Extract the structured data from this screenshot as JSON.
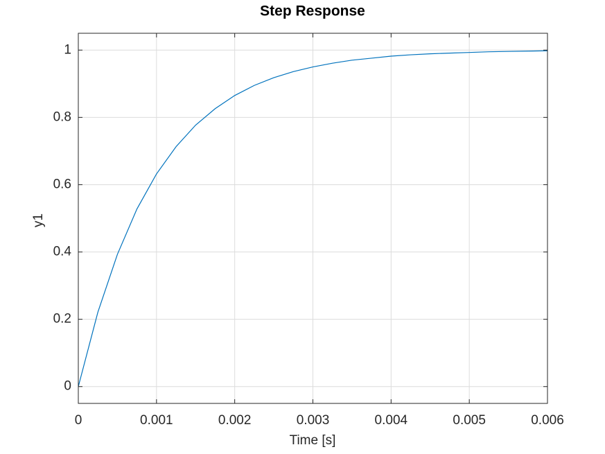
{
  "chart_data": {
    "type": "line",
    "title": "Step Response",
    "x_label": "Time [s]",
    "y_label": "y1",
    "x": [
      0,
      0.00025,
      0.0005,
      0.00075,
      0.001,
      0.00125,
      0.0015,
      0.00175,
      0.002,
      0.00225,
      0.0025,
      0.00275,
      0.003,
      0.00325,
      0.0035,
      0.00375,
      0.004,
      0.00425,
      0.0045,
      0.00475,
      0.005,
      0.00525,
      0.0055,
      0.00575,
      0.006
    ],
    "series": [
      {
        "name": "y1",
        "color": "#0072bd",
        "values": [
          0,
          0.221,
          0.393,
          0.528,
          0.632,
          0.713,
          0.777,
          0.826,
          0.865,
          0.895,
          0.918,
          0.936,
          0.95,
          0.961,
          0.97,
          0.976,
          0.982,
          0.986,
          0.989,
          0.991,
          0.993,
          0.995,
          0.996,
          0.997,
          0.998
        ]
      }
    ],
    "xlim": [
      0,
      0.006
    ],
    "xticks": [
      0,
      0.001,
      0.002,
      0.003,
      0.004,
      0.005,
      0.006
    ],
    "ylim": [
      -0.05,
      1.05
    ],
    "yticks": [
      0,
      0.2,
      0.4,
      0.6,
      0.8,
      1
    ],
    "grid": true
  }
}
